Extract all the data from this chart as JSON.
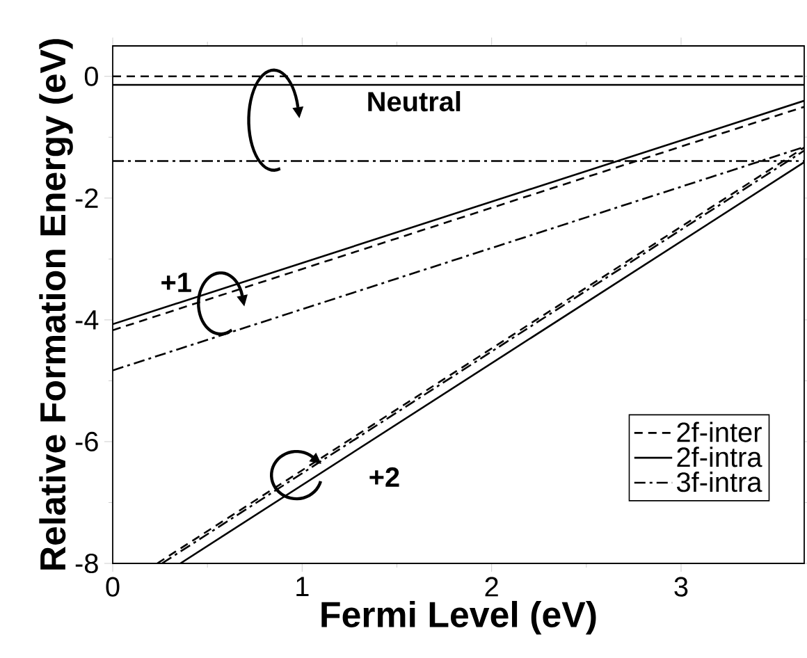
{
  "chart_data": {
    "type": "line",
    "xlabel": "Fermi Level (eV)",
    "ylabel": "Relative Formation Energy (eV)",
    "xlim": [
      0,
      3.65
    ],
    "ylim": [
      -8,
      0.5
    ],
    "xticks": [
      0,
      1,
      2,
      3
    ],
    "yticks": [
      -8,
      -6,
      -4,
      -2,
      0
    ],
    "legend": "bottom right",
    "series": [
      {
        "name": "2f-inter",
        "color": "#000000",
        "line_style": "dashed",
        "x": [
          0,
          3.65
        ],
        "values": [
          0,
          0
        ]
      },
      {
        "name": "2f-intra",
        "color": "#000000",
        "line_style": "solid",
        "x": [
          0,
          3.65
        ],
        "values": [
          -0.14,
          -0.14
        ]
      },
      {
        "name": "3f-intra",
        "color": "#000000",
        "line_style": "dashdot",
        "x": [
          0,
          3.65
        ],
        "values": [
          -1.39,
          -1.39
        ]
      },
      {
        "color": "#000000",
        "line_style": "dashed",
        "x": [
          0,
          3.65
        ],
        "values": [
          -4.17,
          -0.5
        ]
      },
      {
        "color": "#000000",
        "line_style": "solid",
        "x": [
          0,
          3.65
        ],
        "values": [
          -4.07,
          -0.4
        ]
      },
      {
        "color": "#000000",
        "line_style": "dashdot",
        "x": [
          0,
          3.65
        ],
        "values": [
          -4.83,
          -1.16
        ]
      },
      {
        "color": "#000000",
        "line_style": "dashed",
        "x": [
          0.235,
          3.65
        ],
        "values": [
          -8,
          -1.17
        ]
      },
      {
        "color": "#000000",
        "line_style": "solid",
        "x": [
          0.357,
          3.65
        ],
        "values": [
          -8,
          -1.41
        ]
      },
      {
        "color": "#000000",
        "line_style": "dashdot",
        "x": [
          0.26,
          3.65
        ],
        "values": [
          -8,
          -1.22
        ]
      }
    ],
    "annotations": [
      "Neutral",
      "+1",
      "+2"
    ]
  }
}
